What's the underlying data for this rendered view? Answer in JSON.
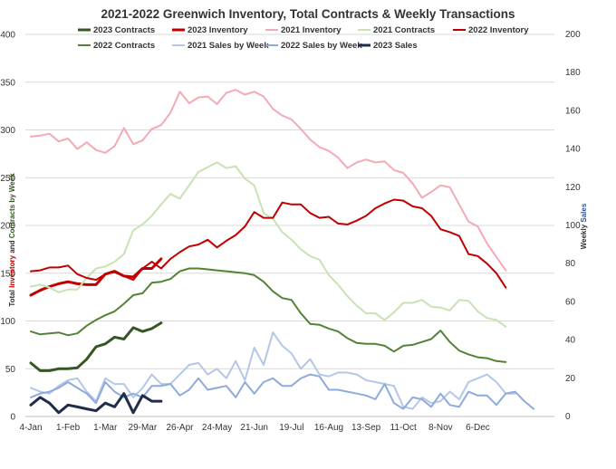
{
  "chart_data": {
    "type": "line",
    "title": "2021-2022 Greenwich Inventory, Total Contracts & Weekly Transactions",
    "ylabel_left_parts": [
      "Total ",
      "Inventory",
      " and ",
      "Contracts by Week"
    ],
    "ylabel_right_parts": [
      "Weekly ",
      "Sales"
    ],
    "ylim_left": [
      0,
      400
    ],
    "ylim_right": [
      0,
      200
    ],
    "y_left_ticks": [
      0,
      50,
      100,
      150,
      200,
      250,
      300,
      350,
      400
    ],
    "y_right_ticks": [
      0,
      20,
      40,
      60,
      80,
      100,
      120,
      140,
      160,
      180,
      200
    ],
    "x_ticks": [
      {
        "week": 0,
        "label": "4-Jan"
      },
      {
        "week": 4,
        "label": "1-Feb"
      },
      {
        "week": 8,
        "label": "1-Mar"
      },
      {
        "week": 12,
        "label": "29-Mar"
      },
      {
        "week": 16,
        "label": "26-Apr"
      },
      {
        "week": 20,
        "label": "24-May"
      },
      {
        "week": 24,
        "label": "21-Jun"
      },
      {
        "week": 28,
        "label": "19-Jul"
      },
      {
        "week": 32,
        "label": "16-Aug"
      },
      {
        "week": 36,
        "label": "13-Sep"
      },
      {
        "week": 40,
        "label": "11-Oct"
      },
      {
        "week": 44,
        "label": "8-Nov"
      },
      {
        "week": 48,
        "label": "6-Dec"
      }
    ],
    "grid": "horizontal",
    "legend_position": "top",
    "series": [
      {
        "name": "2023 Contracts",
        "axis": "left",
        "color": "#375623",
        "width": 3,
        "values": [
          56,
          48,
          48,
          50,
          50,
          51,
          60,
          73,
          76,
          83,
          81,
          93,
          89,
          92,
          98
        ]
      },
      {
        "name": "2023 Inventory",
        "axis": "left",
        "color": "#c00000",
        "width": 3,
        "values": [
          127,
          132,
          136,
          139,
          141,
          139,
          138,
          138,
          149,
          152,
          147,
          146,
          155,
          155,
          165
        ]
      },
      {
        "name": "2021 Inventory",
        "axis": "left",
        "color": "#f4aab4",
        "width": 2,
        "values": [
          293,
          294,
          296,
          288,
          291,
          280,
          287,
          279,
          276,
          283,
          302,
          285,
          289,
          301,
          305,
          318,
          340,
          328,
          334,
          335,
          327,
          339,
          342,
          337,
          340,
          335,
          322,
          315,
          311,
          301,
          290,
          282,
          278,
          271,
          260,
          266,
          269,
          266,
          267,
          258,
          255,
          244,
          229,
          235,
          242,
          240,
          222,
          204,
          199,
          181,
          167,
          153
        ]
      },
      {
        "name": "2021 Contracts",
        "axis": "left",
        "color": "#c9e2b3",
        "width": 2,
        "values": [
          136,
          138,
          135,
          130,
          133,
          133,
          145,
          155,
          157,
          162,
          170,
          195,
          201,
          210,
          222,
          233,
          228,
          242,
          256,
          261,
          266,
          260,
          262,
          249,
          242,
          213,
          207,
          193,
          185,
          175,
          168,
          164,
          148,
          138,
          126,
          116,
          108,
          108,
          101,
          109,
          119,
          119,
          122,
          115,
          114,
          111,
          122,
          121,
          110,
          103,
          101,
          94
        ]
      },
      {
        "name": "2022 Inventory",
        "axis": "left",
        "color": "#c00000",
        "width": 2,
        "values": [
          152,
          153,
          156,
          156,
          158,
          149,
          145,
          143,
          149,
          151,
          147,
          143,
          155,
          162,
          155,
          165,
          172,
          178,
          180,
          185,
          177,
          184,
          190,
          199,
          214,
          208,
          208,
          224,
          222,
          222,
          213,
          208,
          209,
          202,
          201,
          205,
          210,
          218,
          223,
          227,
          226,
          220,
          218,
          210,
          196,
          193,
          189,
          170,
          168,
          160,
          150,
          135
        ]
      },
      {
        "name": "2022 Contracts",
        "axis": "left",
        "color": "#548235",
        "width": 2,
        "values": [
          89,
          86,
          87,
          88,
          85,
          87,
          95,
          101,
          106,
          110,
          118,
          127,
          129,
          140,
          141,
          144,
          152,
          155,
          155,
          154,
          153,
          152,
          151,
          150,
          148,
          141,
          131,
          124,
          122,
          108,
          97,
          96,
          92,
          89,
          82,
          77,
          76,
          76,
          74,
          68,
          74,
          75,
          78,
          81,
          90,
          78,
          69,
          65,
          62,
          61,
          58,
          57
        ]
      },
      {
        "name": "2021 Sales by Week",
        "axis": "right",
        "color": "#b4c7e7",
        "width": 2,
        "values": [
          15,
          13,
          12,
          16,
          19,
          20,
          13,
          8,
          20,
          17,
          17,
          10,
          15,
          22,
          17,
          17,
          22,
          27,
          28,
          22,
          25,
          20,
          29,
          19,
          36,
          27,
          44,
          37,
          33,
          25,
          30,
          22,
          21,
          23,
          23,
          22,
          19,
          18,
          17,
          16,
          5,
          4,
          10,
          7,
          8,
          13,
          9,
          18,
          20,
          22,
          18,
          12,
          12
        ]
      },
      {
        "name": "2022 Sales by Week",
        "axis": "right",
        "color": "#8faadc",
        "width": 2,
        "values": [
          10,
          12,
          13,
          15,
          18,
          15,
          12,
          7,
          18,
          13,
          10,
          12,
          10,
          16,
          16,
          17,
          11,
          14,
          20,
          14,
          15,
          16,
          10,
          18,
          12,
          18,
          20,
          16,
          16,
          20,
          22,
          21,
          14,
          14,
          13,
          12,
          11,
          9,
          17,
          7,
          4,
          10,
          9,
          5,
          12,
          6,
          5,
          13,
          11,
          11,
          6,
          12,
          13,
          8,
          4
        ]
      },
      {
        "name": "2023 Sales",
        "axis": "right",
        "color": "#1f2d4a",
        "width": 3,
        "values": [
          6,
          10,
          7,
          2,
          6,
          5,
          4,
          3,
          7,
          5,
          12,
          2,
          11,
          8,
          8
        ]
      }
    ],
    "legend_rows": [
      [
        "2023 Contracts",
        "2023 Inventory",
        "2021 Inventory",
        "2021 Contracts",
        "2022 Inventory"
      ],
      [
        "2022 Contracts",
        "2021 Sales by Week",
        "2022 Sales by Week",
        "2023 Sales"
      ]
    ]
  }
}
